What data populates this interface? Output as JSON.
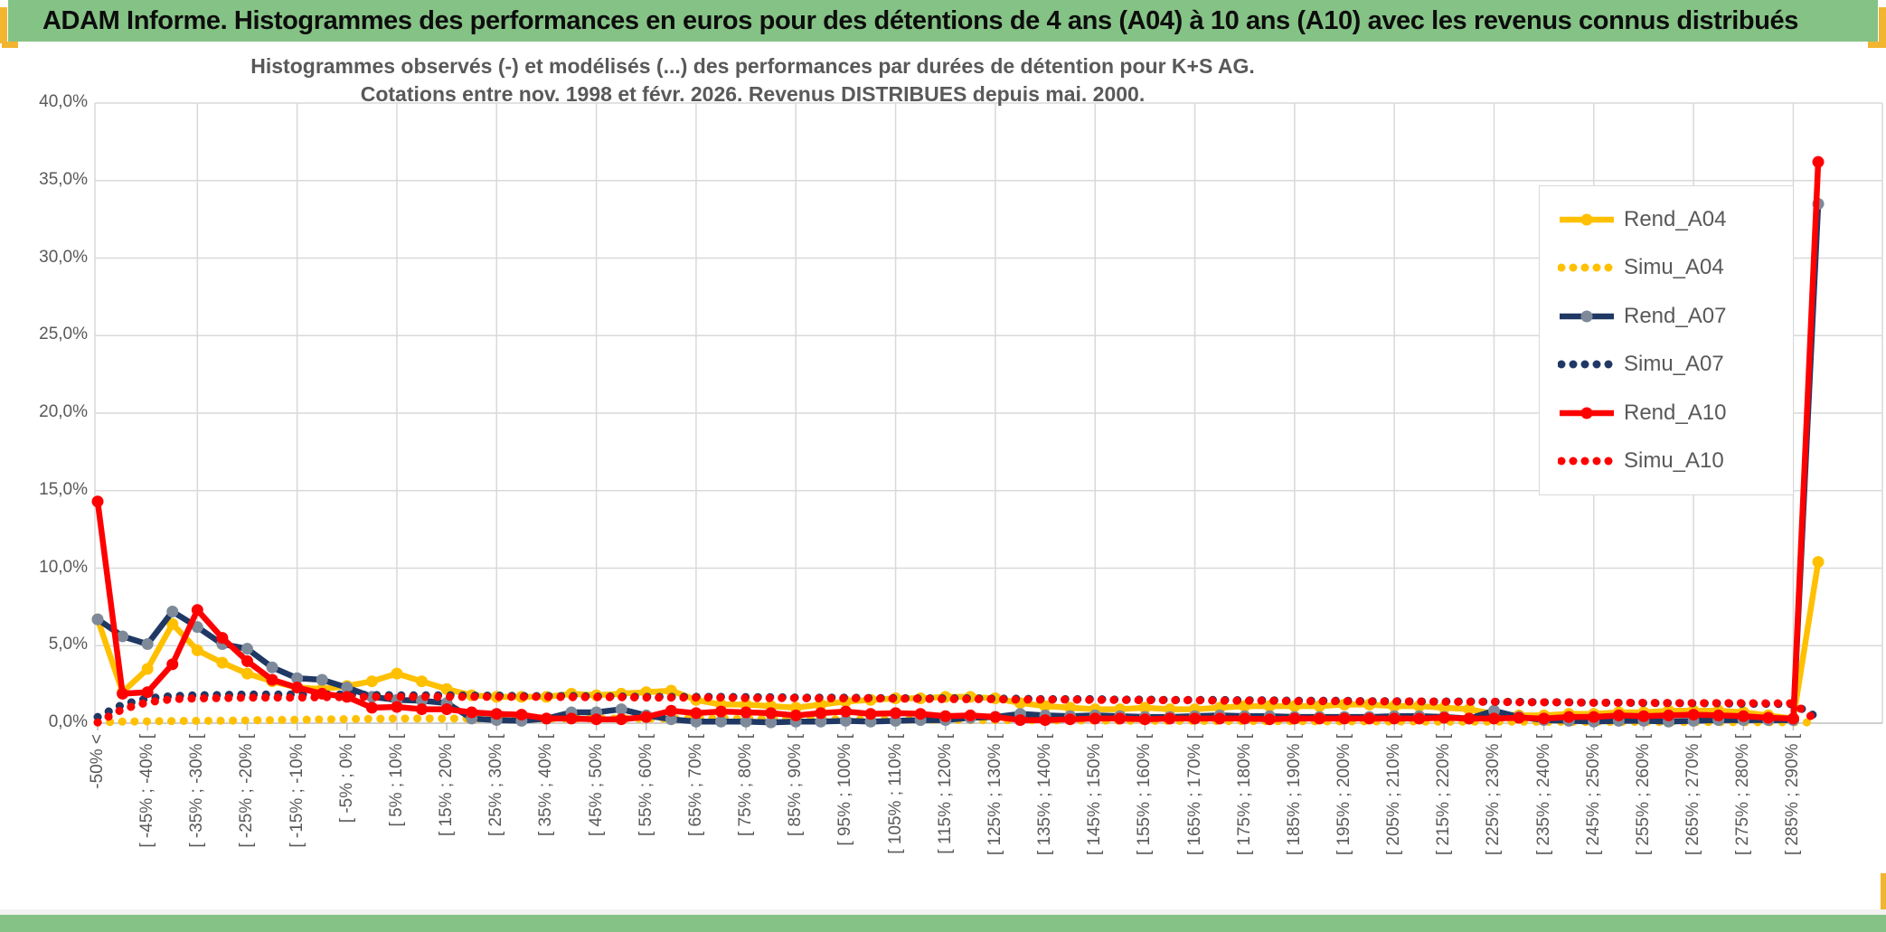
{
  "header": {
    "title": "ADAM Informe. Histogrammes des performances en euros pour des détentions de 4 ans (A04) à 10 ans (A10) avec les revenus connus distribués"
  },
  "colors": {
    "header_green": "#85C285",
    "gold_accent": "#F2B530",
    "grid": "#D9D9D9",
    "axis": "#BFBFBF",
    "label_gray": "#595959",
    "series_gold": "#FFC000",
    "series_navy": "#203864",
    "series_red": "#FF0000",
    "navy_marker_gray": "#7E8A99"
  },
  "chart_data": {
    "type": "line",
    "title_line1": "Histogrammes observés (-) et modélisés (...) des performances par durées de détention pour K+S AG.",
    "title_line2": "Cotations entre nov. 1998 et févr. 2026. Revenus DISTRIBUES depuis mai. 2000.",
    "xlabel": "",
    "ylabel": "",
    "ylim": [
      0,
      40
    ],
    "ytick_step": 5,
    "ytick_labels": [
      "0,0%",
      "5,0%",
      "10,0%",
      "15,0%",
      "20,0%",
      "25,0%",
      "30,0%",
      "35,0%",
      "40,0%"
    ],
    "grid": true,
    "legend_position": "right-top",
    "n_bins": 70,
    "x_label_every": 2,
    "x_tick_labels": [
      "-50% <",
      "[ -45% ; -40% [",
      "[ -35% ; -30% [",
      "[ -25% ; -20% [",
      "[ -15% ; -10% [",
      "[ -5% ; 0% [",
      "[ 5% ; 10% [",
      "[ 15% ; 20% [",
      "[ 25% ; 30% [",
      "[ 35% ; 40% [",
      "[ 45% ; 50% [",
      "[ 55% ; 60% [",
      "[ 65% ; 70% [",
      "[ 75% ; 80% [",
      "[ 85% ; 90% [",
      "[ 95% ; 100% [",
      "[ 105% ; 110% [",
      "[ 115% ; 120% [",
      "[ 125% ; 130% [",
      "[ 135% ; 140% [",
      "[ 145% ; 150% [",
      "[ 155% ; 160% [",
      "[ 165% ; 170% [",
      "[ 175% ; 180% [",
      "[ 185% ; 190% [",
      "[ 195% ; 200% [",
      "[ 205% ; 210% [",
      "[ 215% ; 220% [",
      "[ 225% ; 230% [",
      "[ 235% ; 240% [",
      "[ 245% ; 250% [",
      "[ 255% ; 260% [",
      "[ 265% ; 270% [",
      "[ 275% ; 280% [",
      "[ 285% ; 290% ["
    ],
    "series": [
      {
        "name": "Rend_A04",
        "style": "solid",
        "color": "#FFC000",
        "marker_color": "#FFC000",
        "values": [
          6.7,
          2.0,
          3.5,
          6.4,
          4.7,
          3.9,
          3.2,
          2.7,
          2.3,
          2.2,
          2.4,
          2.7,
          3.2,
          2.7,
          2.2,
          1.8,
          1.7,
          1.7,
          1.7,
          1.9,
          1.8,
          1.9,
          2.0,
          2.1,
          1.5,
          1.2,
          1.2,
          1.1,
          1.0,
          1.2,
          1.4,
          1.5,
          1.6,
          1.6,
          1.7,
          1.7,
          1.6,
          1.3,
          1.1,
          1.0,
          0.9,
          0.9,
          1.0,
          0.9,
          0.9,
          1.0,
          1.1,
          1.1,
          1.1,
          1.1,
          1.2,
          1.2,
          1.1,
          1.1,
          1.0,
          0.9,
          0.6,
          0.5,
          0.5,
          0.6,
          0.6,
          0.7,
          0.7,
          0.8,
          0.8,
          0.8,
          0.7,
          0.5,
          0.3,
          10.4
        ]
      },
      {
        "name": "Simu_A04",
        "style": "dotted",
        "color": "#FFC000",
        "values": [
          0.05,
          0.1,
          0.12,
          0.14,
          0.15,
          0.16,
          0.18,
          0.2,
          0.22,
          0.24,
          0.26,
          0.28,
          0.3,
          0.3,
          0.3,
          0.3,
          0.3,
          0.3,
          0.3,
          0.3,
          0.3,
          0.3,
          0.3,
          0.3,
          0.3,
          0.3,
          0.28,
          0.28,
          0.26,
          0.26,
          0.25,
          0.24,
          0.24,
          0.22,
          0.22,
          0.2,
          0.2,
          0.2,
          0.18,
          0.18,
          0.17,
          0.16,
          0.16,
          0.15,
          0.15,
          0.14,
          0.14,
          0.13,
          0.13,
          0.12,
          0.12,
          0.12,
          0.11,
          0.11,
          0.1,
          0.1,
          0.1,
          0.1,
          0.09,
          0.09,
          0.08,
          0.08,
          0.08,
          0.07,
          0.07,
          0.07,
          0.06,
          0.06,
          0.06,
          0.05
        ]
      },
      {
        "name": "Rend_A07",
        "style": "solid",
        "color": "#203864",
        "marker_color": "#7E8A99",
        "values": [
          6.7,
          5.6,
          5.1,
          7.2,
          6.2,
          5.1,
          4.8,
          3.6,
          2.9,
          2.8,
          2.3,
          1.7,
          1.5,
          1.45,
          1.3,
          0.3,
          0.2,
          0.15,
          0.3,
          0.7,
          0.7,
          0.9,
          0.5,
          0.25,
          0.1,
          0.1,
          0.1,
          0.05,
          0.1,
          0.1,
          0.15,
          0.1,
          0.15,
          0.2,
          0.2,
          0.35,
          0.4,
          0.6,
          0.5,
          0.45,
          0.5,
          0.45,
          0.4,
          0.4,
          0.45,
          0.5,
          0.45,
          0.45,
          0.4,
          0.4,
          0.4,
          0.4,
          0.45,
          0.45,
          0.4,
          0.3,
          0.8,
          0.4,
          0.2,
          0.15,
          0.1,
          0.15,
          0.15,
          0.1,
          0.15,
          0.2,
          0.2,
          0.2,
          0.2,
          33.5
        ]
      },
      {
        "name": "Simu_A07",
        "style": "dotted",
        "color": "#203864",
        "values": [
          0.4,
          1.2,
          1.6,
          1.75,
          1.8,
          1.82,
          1.85,
          1.85,
          1.85,
          1.85,
          1.85,
          1.82,
          1.8,
          1.8,
          1.8,
          1.78,
          1.78,
          1.75,
          1.75,
          1.75,
          1.72,
          1.72,
          1.7,
          1.7,
          1.7,
          1.7,
          1.68,
          1.68,
          1.65,
          1.65,
          1.65,
          1.62,
          1.62,
          1.6,
          1.6,
          1.6,
          1.58,
          1.58,
          1.55,
          1.55,
          1.55,
          1.52,
          1.52,
          1.5,
          1.5,
          1.5,
          1.48,
          1.48,
          1.45,
          1.45,
          1.45,
          1.42,
          1.42,
          1.4,
          1.4,
          1.4,
          1.38,
          1.38,
          1.35,
          1.35,
          1.32,
          1.32,
          1.3,
          1.3,
          1.28,
          1.28,
          1.25,
          1.25,
          1.22,
          0.35
        ]
      },
      {
        "name": "Rend_A10",
        "style": "solid",
        "color": "#FF0000",
        "marker_color": "#FF0000",
        "values": [
          14.3,
          1.9,
          2.0,
          3.8,
          7.3,
          5.5,
          4.0,
          2.8,
          2.3,
          1.9,
          1.7,
          1.0,
          1.05,
          0.9,
          0.9,
          0.7,
          0.6,
          0.55,
          0.3,
          0.3,
          0.25,
          0.25,
          0.4,
          0.8,
          0.65,
          0.75,
          0.7,
          0.65,
          0.5,
          0.65,
          0.75,
          0.6,
          0.65,
          0.6,
          0.45,
          0.5,
          0.4,
          0.2,
          0.2,
          0.25,
          0.3,
          0.3,
          0.25,
          0.3,
          0.3,
          0.3,
          0.3,
          0.25,
          0.3,
          0.3,
          0.3,
          0.3,
          0.3,
          0.3,
          0.35,
          0.3,
          0.3,
          0.35,
          0.3,
          0.4,
          0.4,
          0.5,
          0.45,
          0.5,
          0.55,
          0.5,
          0.45,
          0.35,
          0.3,
          36.2
        ]
      },
      {
        "name": "Simu_A10",
        "style": "dotted",
        "color": "#FF0000",
        "values": [
          0.05,
          0.9,
          1.35,
          1.55,
          1.6,
          1.62,
          1.65,
          1.65,
          1.65,
          1.68,
          1.68,
          1.7,
          1.7,
          1.7,
          1.7,
          1.7,
          1.7,
          1.7,
          1.7,
          1.68,
          1.68,
          1.68,
          1.65,
          1.65,
          1.65,
          1.65,
          1.62,
          1.62,
          1.62,
          1.6,
          1.6,
          1.6,
          1.58,
          1.58,
          1.55,
          1.55,
          1.55,
          1.52,
          1.52,
          1.52,
          1.5,
          1.5,
          1.48,
          1.48,
          1.48,
          1.45,
          1.45,
          1.45,
          1.42,
          1.42,
          1.42,
          1.4,
          1.4,
          1.4,
          1.38,
          1.38,
          1.38,
          1.35,
          1.35,
          1.35,
          1.32,
          1.32,
          1.32,
          1.3,
          1.3,
          1.3,
          1.3,
          1.28,
          1.28,
          0.1
        ]
      }
    ]
  }
}
